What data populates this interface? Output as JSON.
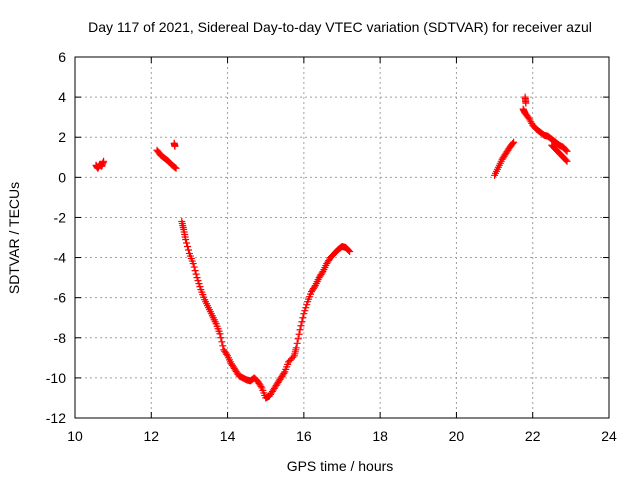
{
  "chart_data": {
    "type": "scatter",
    "title": "Day 117 of 2021, Sidereal Day-to-day VTEC variation (SDTVAR) for receiver azul",
    "xlabel": "GPS time / hours",
    "ylabel": "SDTVAR / TECUs",
    "xlim": [
      10,
      24
    ],
    "ylim": [
      -12,
      6
    ],
    "x_ticks": [
      "10",
      "12",
      "14",
      "16",
      "18",
      "20",
      "22",
      "24"
    ],
    "y_ticks": [
      "-12",
      "-10",
      "-8",
      "-6",
      "-4",
      "-2",
      "0",
      "2",
      "4",
      "6"
    ],
    "grid": true,
    "marker": "+",
    "color": "#ff0000",
    "series": [
      {
        "name": "SDTVAR",
        "segments": [
          [
            [
              10.55,
              0.6
            ],
            [
              10.6,
              0.45
            ],
            [
              10.65,
              0.65
            ],
            [
              10.7,
              0.55
            ],
            [
              10.75,
              0.8
            ]
          ],
          [
            [
              12.15,
              1.35
            ],
            [
              12.25,
              1.1
            ],
            [
              12.35,
              0.95
            ],
            [
              12.45,
              0.8
            ],
            [
              12.55,
              0.6
            ],
            [
              12.65,
              0.45
            ]
          ],
          [
            [
              12.6,
              1.7
            ],
            [
              12.62,
              1.55
            ]
          ],
          [
            [
              12.8,
              -2.2
            ],
            [
              12.85,
              -2.6
            ],
            [
              12.9,
              -3.1
            ],
            [
              13.0,
              -3.8
            ],
            [
              13.1,
              -4.3
            ],
            [
              13.2,
              -5.0
            ],
            [
              13.3,
              -5.6
            ],
            [
              13.4,
              -6.1
            ],
            [
              13.5,
              -6.5
            ],
            [
              13.6,
              -6.9
            ],
            [
              13.7,
              -7.3
            ],
            [
              13.8,
              -7.8
            ],
            [
              13.9,
              -8.6
            ],
            [
              14.0,
              -8.9
            ],
            [
              14.1,
              -9.3
            ],
            [
              14.2,
              -9.6
            ],
            [
              14.3,
              -9.9
            ],
            [
              14.4,
              -10.0
            ],
            [
              14.5,
              -10.1
            ],
            [
              14.6,
              -10.15
            ],
            [
              14.7,
              -10.0
            ],
            [
              14.8,
              -10.2
            ],
            [
              14.9,
              -10.5
            ],
            [
              15.0,
              -11.0
            ],
            [
              15.1,
              -10.9
            ],
            [
              15.2,
              -10.6
            ],
            [
              15.3,
              -10.3
            ],
            [
              15.4,
              -10.0
            ],
            [
              15.5,
              -9.7
            ],
            [
              15.6,
              -9.2
            ],
            [
              15.75,
              -8.9
            ],
            [
              15.8,
              -8.5
            ],
            [
              15.9,
              -7.6
            ],
            [
              16.0,
              -6.8
            ],
            [
              16.1,
              -6.2
            ],
            [
              16.2,
              -5.7
            ],
            [
              16.3,
              -5.4
            ],
            [
              16.4,
              -5.0
            ],
            [
              16.5,
              -4.7
            ],
            [
              16.6,
              -4.3
            ],
            [
              16.7,
              -4.0
            ],
            [
              16.8,
              -3.8
            ],
            [
              16.9,
              -3.6
            ],
            [
              17.0,
              -3.45
            ],
            [
              17.1,
              -3.5
            ],
            [
              17.2,
              -3.7
            ]
          ],
          [
            [
              21.0,
              0.1
            ],
            [
              21.1,
              0.5
            ],
            [
              21.2,
              0.9
            ],
            [
              21.3,
              1.2
            ],
            [
              21.4,
              1.5
            ],
            [
              21.5,
              1.75
            ]
          ],
          [
            [
              21.75,
              3.4
            ],
            [
              21.8,
              3.2
            ],
            [
              21.9,
              2.95
            ],
            [
              22.0,
              2.6
            ],
            [
              22.1,
              2.4
            ],
            [
              22.2,
              2.25
            ],
            [
              22.3,
              2.1
            ],
            [
              22.4,
              2.05
            ],
            [
              22.5,
              1.9
            ],
            [
              22.6,
              1.75
            ],
            [
              22.7,
              1.6
            ],
            [
              22.8,
              1.5
            ],
            [
              22.9,
              1.3
            ]
          ],
          [
            [
              21.8,
              4.0
            ],
            [
              21.82,
              3.7
            ]
          ],
          [
            [
              22.5,
              1.6
            ],
            [
              22.6,
              1.4
            ],
            [
              22.7,
              1.2
            ],
            [
              22.8,
              1.0
            ],
            [
              22.9,
              0.8
            ]
          ]
        ]
      }
    ]
  }
}
